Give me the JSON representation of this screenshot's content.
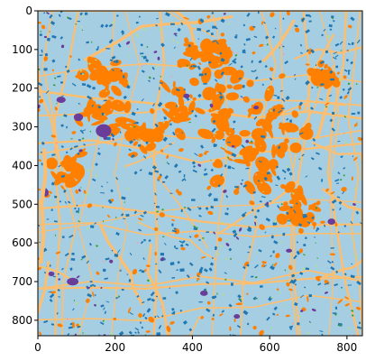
{
  "chart_data": {
    "type": "heatmap",
    "title": "",
    "xlabel": "",
    "ylabel": "",
    "xlim": [
      0,
      840
    ],
    "ylim": [
      840,
      0
    ],
    "x_ticks": [
      0,
      200,
      400,
      600,
      800
    ],
    "y_ticks": [
      0,
      100,
      200,
      300,
      400,
      500,
      600,
      700,
      800
    ],
    "x_tick_labels": [
      "0",
      "200",
      "400",
      "600",
      "800"
    ],
    "y_tick_labels": [
      "0",
      "100",
      "200",
      "300",
      "400",
      "500",
      "600",
      "700",
      "800"
    ],
    "grid": false,
    "legend": "none",
    "colors": {
      "background": "#a6cee3",
      "orange": "#ff7f00",
      "light_orange": "#fdbf6f",
      "blue": "#1f78b4",
      "purple": "#6a3d9a",
      "light_green": "#b2df8a",
      "green": "#33a02c",
      "pink": "#fb9a99"
    }
  }
}
